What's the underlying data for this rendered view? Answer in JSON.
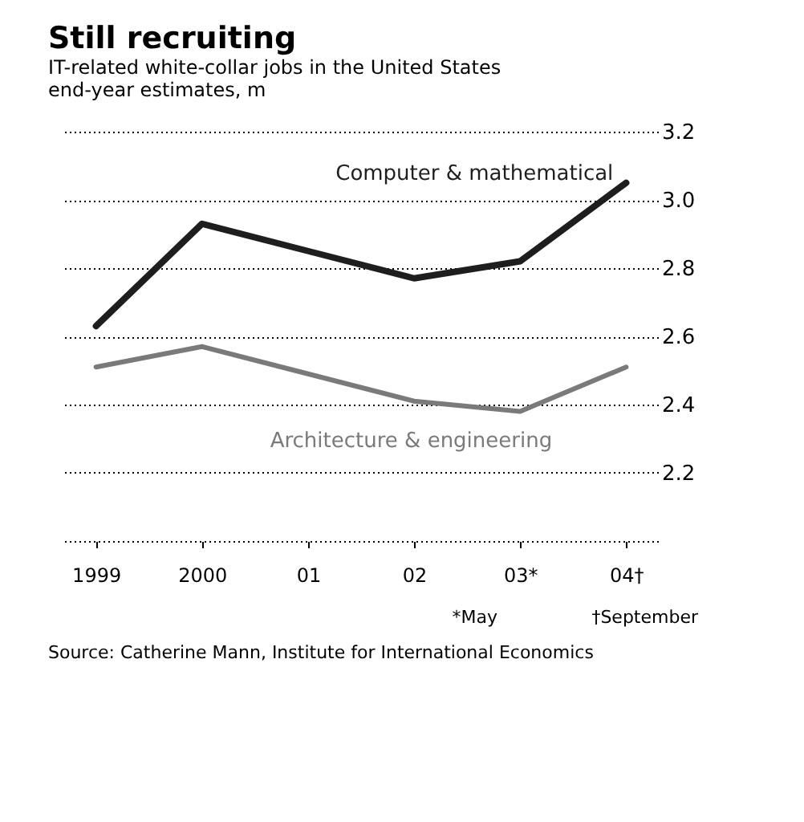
{
  "chart_data": {
    "type": "line",
    "title": "Still recruiting",
    "subtitle": "IT-related white-collar jobs in the United States",
    "ylabel": "end-year estimates, m",
    "categories": [
      "1999",
      "2000",
      "01",
      "02",
      "03*",
      "04†"
    ],
    "series": [
      {
        "name": "Computer & mathematical",
        "color": "#1e1e1e",
        "values": [
          2.63,
          2.93,
          2.85,
          2.77,
          2.82,
          3.05
        ]
      },
      {
        "name": "Architecture & engineering",
        "color": "#7a7a7a",
        "values": [
          2.51,
          2.57,
          2.49,
          2.41,
          2.38,
          2.51
        ]
      }
    ],
    "ylim": [
      2.0,
      3.2
    ],
    "yticks": [
      {
        "value": 2.0,
        "label": null
      },
      2.2,
      2.4,
      2.6,
      2.8,
      {
        "value": 3.0,
        "label": "3.0"
      },
      3.2
    ],
    "grid": "y",
    "annotations": [
      "*May",
      "†September",
      "Source: Catherine Mann, Institute for International Economics"
    ]
  }
}
